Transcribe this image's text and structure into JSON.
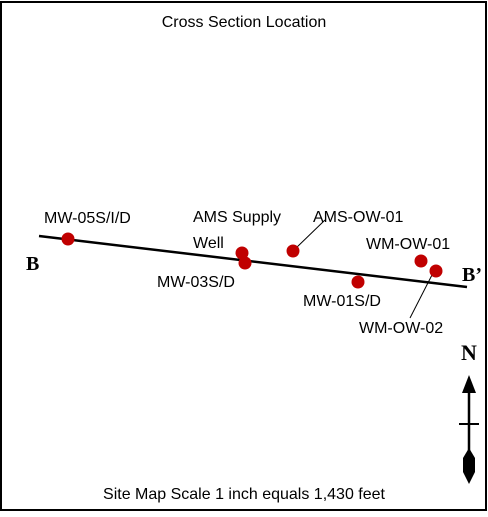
{
  "map": {
    "title": "Cross Section Location",
    "scale_text": "Site Map Scale 1 inch equals 1,430 feet",
    "section_start_label": "B",
    "section_end_label": "B’",
    "north_label": "N",
    "wells": [
      {
        "label": "MW-05S/I/D"
      },
      {
        "label": "AMS Supply"
      },
      {
        "label": "Well"
      },
      {
        "label": "MW-03S/D"
      },
      {
        "label": "AMS-OW-01"
      },
      {
        "label": "MW-01S/D"
      },
      {
        "label": "WM-OW-01"
      },
      {
        "label": "WM-OW-02"
      }
    ],
    "colors": {
      "border": "#000000",
      "well_marker": "#c00000",
      "line": "#000000"
    }
  }
}
